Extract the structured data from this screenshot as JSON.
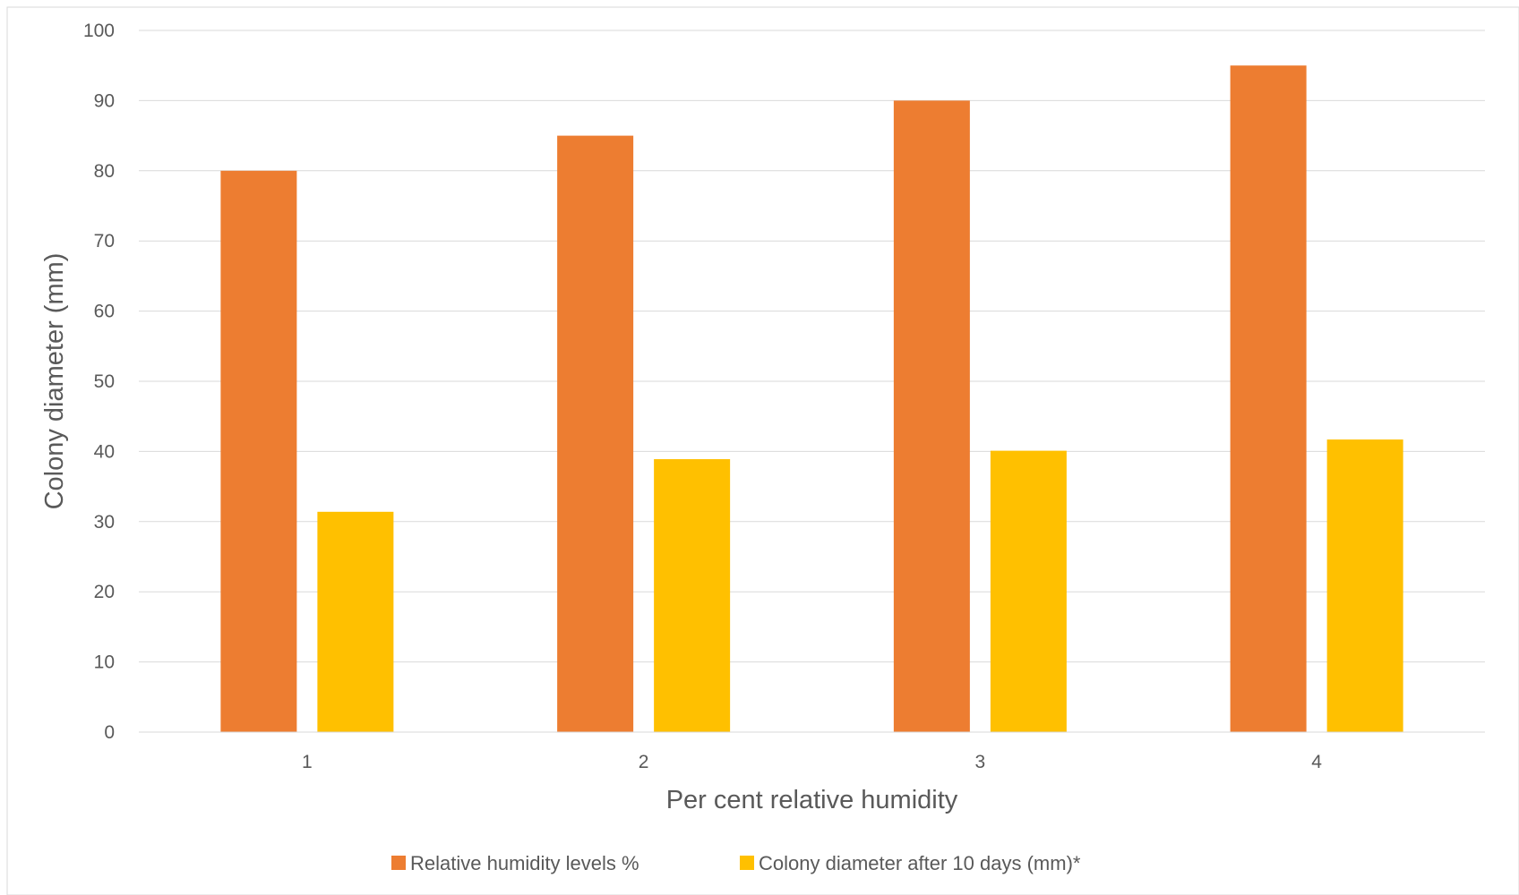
{
  "chart_data": {
    "type": "bar",
    "title": "",
    "xlabel": "Per cent relative humidity",
    "ylabel": "Colony diameter  (mm)",
    "categories": [
      "1",
      "2",
      "3",
      "4"
    ],
    "series": [
      {
        "name": "Relative humidity levels %",
        "color": "#ED7D31",
        "values": [
          80,
          85,
          90,
          95
        ]
      },
      {
        "name": "Colony diameter after 10 days (mm)*",
        "color": "#FFC000",
        "values": [
          31.4,
          38.9,
          40.1,
          41.7
        ]
      }
    ],
    "ylim": [
      0,
      100
    ],
    "yticks": [
      "0",
      "10",
      "20",
      "30",
      "40",
      "50",
      "60",
      "70",
      "80",
      "90",
      "100"
    ],
    "grid": true,
    "legend_position": "bottom"
  }
}
